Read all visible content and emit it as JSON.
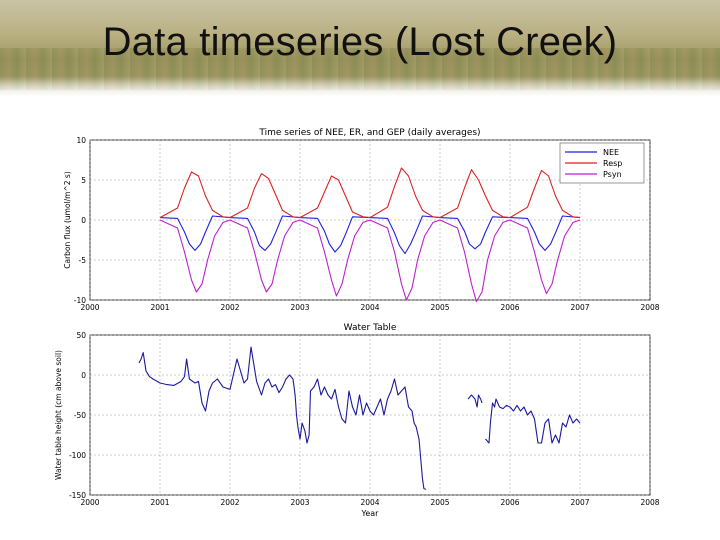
{
  "slide": {
    "title": "Data timeseries (Lost Creek)"
  },
  "chart_data": [
    {
      "type": "line",
      "title": "Time series of NEE, ER, and GEP (daily averages)",
      "xlabel": "",
      "ylabel": "Carbon flux (umol/m^2 s)",
      "xlim": [
        2000,
        2008
      ],
      "ylim": [
        -10,
        10
      ],
      "x_ticks": [
        "2000",
        "2001",
        "2002",
        "2003",
        "2004",
        "2005",
        "2006",
        "2007",
        "2008"
      ],
      "y_ticks": [
        "10",
        "5",
        "0",
        "-5",
        "-10"
      ],
      "grid": true,
      "legend": "top-right",
      "series": [
        {
          "name": "NEE",
          "color": "#2222dd",
          "x": [
            2001.0,
            2001.25,
            2001.35,
            2001.42,
            2001.5,
            2001.58,
            2001.65,
            2001.75,
            2002.0,
            2002.25,
            2002.35,
            2002.42,
            2002.5,
            2002.58,
            2002.65,
            2002.75,
            2003.0,
            2003.25,
            2003.35,
            2003.42,
            2003.5,
            2003.58,
            2003.65,
            2003.75,
            2004.0,
            2004.25,
            2004.35,
            2004.42,
            2004.5,
            2004.58,
            2004.65,
            2004.75,
            2005.0,
            2005.25,
            2005.35,
            2005.42,
            2005.5,
            2005.58,
            2005.65,
            2005.75,
            2006.0,
            2006.25,
            2006.35,
            2006.42,
            2006.5,
            2006.58,
            2006.65,
            2006.75,
            2007.0
          ],
          "y": [
            0.3,
            0.2,
            -1.5,
            -3.0,
            -3.8,
            -3.0,
            -1.5,
            0.5,
            0.3,
            0.2,
            -1.5,
            -3.2,
            -3.8,
            -3.0,
            -1.6,
            0.5,
            0.3,
            0.2,
            -1.4,
            -3.0,
            -4.0,
            -3.2,
            -1.8,
            0.4,
            0.3,
            0.2,
            -1.6,
            -3.2,
            -4.2,
            -3.0,
            -1.6,
            0.5,
            0.3,
            0.2,
            -1.4,
            -3.0,
            -3.6,
            -3.0,
            -1.5,
            0.4,
            0.3,
            0.2,
            -1.5,
            -3.0,
            -3.8,
            -3.0,
            -1.6,
            0.5,
            0.3
          ]
        },
        {
          "name": "Resp",
          "color": "#dd2222",
          "x": [
            2001.0,
            2001.25,
            2001.35,
            2001.45,
            2001.55,
            2001.65,
            2001.75,
            2001.9,
            2002.0,
            2002.25,
            2002.35,
            2002.45,
            2002.55,
            2002.65,
            2002.75,
            2002.9,
            2003.0,
            2003.25,
            2003.35,
            2003.45,
            2003.55,
            2003.65,
            2003.75,
            2003.9,
            2004.0,
            2004.25,
            2004.35,
            2004.45,
            2004.55,
            2004.65,
            2004.75,
            2004.9,
            2005.0,
            2005.25,
            2005.35,
            2005.45,
            2005.55,
            2005.65,
            2005.75,
            2005.9,
            2006.0,
            2006.25,
            2006.35,
            2006.45,
            2006.55,
            2006.65,
            2006.75,
            2006.9,
            2007.0
          ],
          "y": [
            0.3,
            1.5,
            4.0,
            6.0,
            5.5,
            3.0,
            1.2,
            0.4,
            0.3,
            1.5,
            4.0,
            5.8,
            5.2,
            3.2,
            1.2,
            0.4,
            0.3,
            1.5,
            3.5,
            5.5,
            5.0,
            3.0,
            1.0,
            0.4,
            0.3,
            1.6,
            4.2,
            6.5,
            5.5,
            3.0,
            1.2,
            0.4,
            0.3,
            1.5,
            4.0,
            6.3,
            5.0,
            3.0,
            1.2,
            0.4,
            0.3,
            1.6,
            4.0,
            6.2,
            5.5,
            3.0,
            1.2,
            0.4,
            0.3
          ]
        },
        {
          "name": "Psyn",
          "color": "#bb22cc",
          "x": [
            2001.0,
            2001.25,
            2001.35,
            2001.45,
            2001.52,
            2001.6,
            2001.68,
            2001.78,
            2001.9,
            2002.0,
            2002.25,
            2002.35,
            2002.45,
            2002.52,
            2002.6,
            2002.68,
            2002.78,
            2002.9,
            2003.0,
            2003.25,
            2003.35,
            2003.45,
            2003.52,
            2003.6,
            2003.68,
            2003.78,
            2003.9,
            2004.0,
            2004.25,
            2004.35,
            2004.45,
            2004.52,
            2004.6,
            2004.68,
            2004.78,
            2004.9,
            2005.0,
            2005.25,
            2005.35,
            2005.45,
            2005.52,
            2005.6,
            2005.68,
            2005.78,
            2005.9,
            2006.0,
            2006.25,
            2006.35,
            2006.45,
            2006.52,
            2006.6,
            2006.68,
            2006.78,
            2006.9,
            2007.0
          ],
          "y": [
            0.0,
            -1.0,
            -4.0,
            -7.5,
            -9.0,
            -8.0,
            -5.0,
            -2.0,
            -0.3,
            0.0,
            -1.0,
            -4.0,
            -7.5,
            -9.0,
            -8.0,
            -5.0,
            -2.0,
            -0.3,
            0.0,
            -1.0,
            -4.0,
            -7.5,
            -9.5,
            -8.0,
            -5.0,
            -2.0,
            -0.3,
            0.0,
            -1.0,
            -4.0,
            -8.0,
            -10.0,
            -8.5,
            -5.0,
            -2.0,
            -0.3,
            0.0,
            -1.0,
            -4.0,
            -8.0,
            -10.2,
            -9.0,
            -5.0,
            -2.0,
            -0.3,
            0.0,
            -1.0,
            -4.0,
            -7.5,
            -9.2,
            -8.0,
            -5.0,
            -2.0,
            -0.3,
            0.0
          ]
        }
      ]
    },
    {
      "type": "line",
      "title": "Water Table",
      "xlabel": "Year",
      "ylabel": "Water table height (cm above soil)",
      "xlim": [
        2000,
        2008
      ],
      "ylim": [
        -150,
        50
      ],
      "x_ticks": [
        "2000",
        "2001",
        "2002",
        "2003",
        "2004",
        "2005",
        "2006",
        "2007",
        "2008"
      ],
      "y_ticks": [
        "50",
        "0",
        "-50",
        "-100",
        "-150"
      ],
      "grid": true,
      "legend": "none",
      "series": [
        {
          "color": "#1a1aa0",
          "x": [
            2000.7,
            2000.73,
            2000.76,
            2000.8,
            2000.85,
            2000.9,
            2001.0,
            2001.1,
            2001.2,
            2001.3,
            2001.35,
            2001.38,
            2001.42,
            2001.5,
            2001.55,
            2001.6,
            2001.65,
            2001.7,
            2001.75,
            2001.82,
            2001.9,
            2002.0,
            2002.1,
            2002.2,
            2002.25,
            2002.3,
            2002.38,
            2002.45,
            2002.5,
            2002.55,
            2002.6,
            2002.65,
            2002.7,
            2002.75,
            2002.8,
            2002.85,
            2002.9,
            2002.93,
            2002.95,
            2002.97,
            2003.0,
            2003.03,
            2003.07,
            2003.1,
            2003.13,
            2003.15,
            2003.2,
            2003.25,
            2003.3,
            2003.35,
            2003.4,
            2003.45,
            2003.5,
            2003.55,
            2003.6,
            2003.65,
            2003.7,
            2003.75,
            2003.8,
            2003.85,
            2003.9,
            2003.95,
            2004.0,
            2004.05,
            2004.1,
            2004.15,
            2004.2,
            2004.25,
            2004.3,
            2004.35,
            2004.4,
            2004.5,
            2004.55,
            2004.6,
            2004.63,
            2004.66,
            2004.7,
            2004.72,
            2004.75,
            2004.77,
            2004.8
          ],
          "y": [
            15,
            20,
            28,
            5,
            -2,
            -5,
            -10,
            -12,
            -13,
            -8,
            -2,
            20,
            -5,
            -10,
            -8,
            -35,
            -45,
            -20,
            -10,
            -5,
            -15,
            -18,
            20,
            -10,
            -5,
            35,
            -8,
            -25,
            -10,
            -5,
            -15,
            -12,
            -22,
            -15,
            -5,
            0,
            -5,
            -25,
            -50,
            -65,
            -80,
            -60,
            -70,
            -85,
            -75,
            -20,
            -15,
            -5,
            -25,
            -15,
            -25,
            -30,
            -18,
            -40,
            -55,
            -60,
            -20,
            -40,
            -50,
            -25,
            -50,
            -35,
            -45,
            -50,
            -40,
            -30,
            -50,
            -30,
            -20,
            -5,
            -25,
            -15,
            -40,
            -45,
            -60,
            -65,
            -80,
            -100,
            -130,
            -142,
            -143
          ]
        },
        {
          "color": "#1a1aa0",
          "x": [
            2005.4,
            2005.45,
            2005.5,
            2005.53,
            2005.55,
            2005.58,
            2005.6
          ],
          "y": [
            -30,
            -25,
            -30,
            -40,
            -25,
            -30,
            -35
          ]
        },
        {
          "color": "#1a1aa0",
          "x": [
            2005.65,
            2005.7,
            2005.72,
            2005.75,
            2005.78,
            2005.8,
            2005.85,
            2005.9,
            2005.95,
            2006.0,
            2006.05,
            2006.1,
            2006.15,
            2006.2,
            2006.25,
            2006.3,
            2006.35,
            2006.4,
            2006.45,
            2006.5,
            2006.55,
            2006.6,
            2006.65,
            2006.7,
            2006.75,
            2006.8,
            2006.85,
            2006.9,
            2006.95,
            2007.0
          ],
          "y": [
            -80,
            -85,
            -60,
            -35,
            -40,
            -30,
            -40,
            -42,
            -38,
            -40,
            -45,
            -38,
            -45,
            -40,
            -50,
            -45,
            -55,
            -85,
            -85,
            -60,
            -55,
            -85,
            -75,
            -85,
            -60,
            -65,
            -50,
            -60,
            -55,
            -60
          ]
        }
      ]
    }
  ]
}
